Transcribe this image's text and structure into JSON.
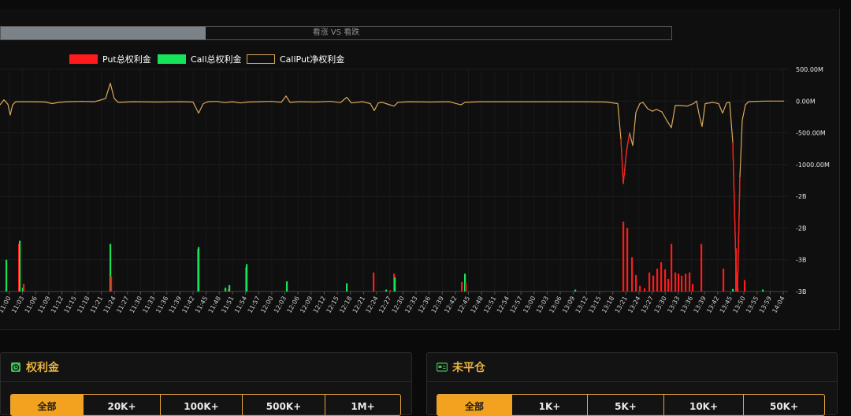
{
  "ratio_bar": {
    "label": "看涨 VS 看跌",
    "bullish_fraction": 0.305
  },
  "colors": {
    "put": "#ff1b1b",
    "call": "#17e35a",
    "net": "#d9a85a",
    "accent": "#f2a21e"
  },
  "legend": [
    {
      "label": "Put总权利金",
      "color": "#ff1b1b",
      "style": "fill"
    },
    {
      "label": "Call总权利金",
      "color": "#17e35a",
      "style": "fill"
    },
    {
      "label": "CallPut净权利金",
      "color": "#d9a85a",
      "style": "outline"
    }
  ],
  "chart_data": {
    "type": "line",
    "x_ticks": [
      "11:00",
      "11:03",
      "11:06",
      "11:09",
      "11:12",
      "11:15",
      "11:18",
      "11:21",
      "11:24",
      "11:27",
      "11:30",
      "11:33",
      "11:36",
      "11:39",
      "11:42",
      "11:45",
      "11:48",
      "11:51",
      "11:54",
      "11:57",
      "12:00",
      "12:03",
      "12:06",
      "12:09",
      "12:12",
      "12:15",
      "12:18",
      "12:21",
      "12:24",
      "12:27",
      "12:30",
      "12:33",
      "12:36",
      "12:39",
      "12:42",
      "12:45",
      "12:48",
      "12:51",
      "12:54",
      "12:57",
      "13:00",
      "13:03",
      "13:06",
      "13:09",
      "13:12",
      "13:15",
      "13:18",
      "13:21",
      "13:24",
      "13:27",
      "13:30",
      "13:33",
      "13:36",
      "13:39",
      "13:42",
      "13:45",
      "13:50",
      "13:55",
      "13:59",
      "14:04"
    ],
    "y_ticks": [
      "500.00M",
      "0.00M",
      "-500.00M",
      "-1000.00M",
      "-2B",
      "-2B",
      "-3B",
      "-3B"
    ],
    "y_range": [
      -3000,
      500
    ],
    "y_unit": "M",
    "grid": true,
    "net_series": [
      [
        0,
        -60
      ],
      [
        5,
        20
      ],
      [
        10,
        -50
      ],
      [
        13,
        -220
      ],
      [
        16,
        -60
      ],
      [
        20,
        -10
      ],
      [
        40,
        -10
      ],
      [
        58,
        -15
      ],
      [
        66,
        -40
      ],
      [
        75,
        -20
      ],
      [
        85,
        -10
      ],
      [
        105,
        -5
      ],
      [
        120,
        -10
      ],
      [
        134,
        40
      ],
      [
        140,
        280
      ],
      [
        145,
        40
      ],
      [
        150,
        -20
      ],
      [
        170,
        -10
      ],
      [
        200,
        -15
      ],
      [
        230,
        -10
      ],
      [
        245,
        -15
      ],
      [
        252,
        -190
      ],
      [
        258,
        -40
      ],
      [
        264,
        -10
      ],
      [
        275,
        -5
      ],
      [
        285,
        -25
      ],
      [
        295,
        -10
      ],
      [
        305,
        -30
      ],
      [
        315,
        -15
      ],
      [
        330,
        -10
      ],
      [
        345,
        -5
      ],
      [
        357,
        -20
      ],
      [
        363,
        80
      ],
      [
        368,
        -20
      ],
      [
        380,
        -10
      ],
      [
        400,
        -15
      ],
      [
        420,
        -5
      ],
      [
        432,
        -25
      ],
      [
        440,
        60
      ],
      [
        446,
        -30
      ],
      [
        460,
        -10
      ],
      [
        470,
        -40
      ],
      [
        475,
        -150
      ],
      [
        480,
        -30
      ],
      [
        485,
        -20
      ],
      [
        490,
        -40
      ],
      [
        500,
        -80
      ],
      [
        505,
        -20
      ],
      [
        520,
        -10
      ],
      [
        545,
        -15
      ],
      [
        570,
        -10
      ],
      [
        585,
        -60
      ],
      [
        590,
        -20
      ],
      [
        610,
        -10
      ],
      [
        650,
        -10
      ],
      [
        700,
        -10
      ],
      [
        740,
        -10
      ],
      [
        770,
        -15
      ],
      [
        784,
        -40
      ],
      [
        788,
        -600
      ],
      [
        791,
        -1300
      ],
      [
        795,
        -800
      ],
      [
        799,
        -500
      ],
      [
        803,
        -700
      ],
      [
        807,
        -180
      ],
      [
        812,
        -40
      ],
      [
        816,
        -20
      ],
      [
        822,
        -120
      ],
      [
        828,
        -160
      ],
      [
        833,
        -130
      ],
      [
        840,
        -170
      ],
      [
        846,
        -300
      ],
      [
        852,
        -420
      ],
      [
        857,
        -70
      ],
      [
        863,
        -70
      ],
      [
        872,
        -80
      ],
      [
        880,
        -40
      ],
      [
        884,
        0
      ],
      [
        887,
        -200
      ],
      [
        891,
        -400
      ],
      [
        895,
        -40
      ],
      [
        905,
        -20
      ],
      [
        912,
        -40
      ],
      [
        917,
        -190
      ],
      [
        922,
        -30
      ],
      [
        926,
        -20
      ],
      [
        930,
        -650
      ],
      [
        934,
        -2600
      ],
      [
        936,
        -3000
      ],
      [
        939,
        -1200
      ],
      [
        942,
        -300
      ],
      [
        946,
        -60
      ],
      [
        950,
        -10
      ],
      [
        970,
        0
      ],
      [
        995,
        0
      ]
    ],
    "bars": [
      [
        8,
        "call",
        -2500
      ],
      [
        24,
        "put",
        -2250
      ],
      [
        25,
        "call",
        -2200
      ],
      [
        29,
        "call",
        -2940
      ],
      [
        30,
        "put",
        -2880
      ],
      [
        140,
        "call",
        -2250
      ],
      [
        141,
        "put",
        -2760
      ],
      [
        251,
        "put",
        -2330
      ],
      [
        252,
        "call",
        -2300
      ],
      [
        286,
        "call",
        -2940
      ],
      [
        290,
        "put",
        -2960
      ],
      [
        291,
        "call",
        -2900
      ],
      [
        312,
        "put",
        -2620
      ],
      [
        313,
        "call",
        -2570
      ],
      [
        364,
        "call",
        -2840
      ],
      [
        440,
        "call",
        -2870
      ],
      [
        474,
        "put",
        -2700
      ],
      [
        490,
        "call",
        -2970
      ],
      [
        495,
        "put",
        -2980
      ],
      [
        500,
        "put",
        -2720
      ],
      [
        501,
        "call",
        -2780
      ],
      [
        586,
        "put",
        -2850
      ],
      [
        590,
        "call",
        -2720
      ],
      [
        591,
        "put",
        -2860
      ],
      [
        730,
        "call",
        -2970
      ],
      [
        791,
        "put",
        -1900
      ],
      [
        796,
        "put",
        -2000
      ],
      [
        802,
        "put",
        -2460
      ],
      [
        807,
        "put",
        -2740
      ],
      [
        812,
        "put",
        -2910
      ],
      [
        818,
        "put",
        -2950
      ],
      [
        824,
        "put",
        -2700
      ],
      [
        829,
        "put",
        -2750
      ],
      [
        834,
        "put",
        -2640
      ],
      [
        839,
        "put",
        -2540
      ],
      [
        844,
        "put",
        -2650
      ],
      [
        848,
        "put",
        -2800
      ],
      [
        852,
        "put",
        -2250
      ],
      [
        857,
        "put",
        -2700
      ],
      [
        861,
        "put",
        -2720
      ],
      [
        865,
        "put",
        -2750
      ],
      [
        870,
        "put",
        -2720
      ],
      [
        875,
        "put",
        -2700
      ],
      [
        879,
        "put",
        -2880
      ],
      [
        890,
        "put",
        -2250
      ],
      [
        918,
        "put",
        -2640
      ],
      [
        930,
        "call",
        -2960
      ],
      [
        934,
        "put",
        -2320
      ],
      [
        936,
        "put",
        -2940
      ],
      [
        945,
        "put",
        -2820
      ],
      [
        968,
        "call",
        -2970
      ]
    ]
  },
  "panel_premium": {
    "title": "权利金",
    "filters": [
      "全部",
      "20K+",
      "100K+",
      "500K+",
      "1M+"
    ],
    "active": 0
  },
  "panel_open_interest": {
    "title": "未平仓",
    "filters": [
      "全部",
      "1K+",
      "5K+",
      "10K+",
      "50K+"
    ],
    "active": 0
  }
}
